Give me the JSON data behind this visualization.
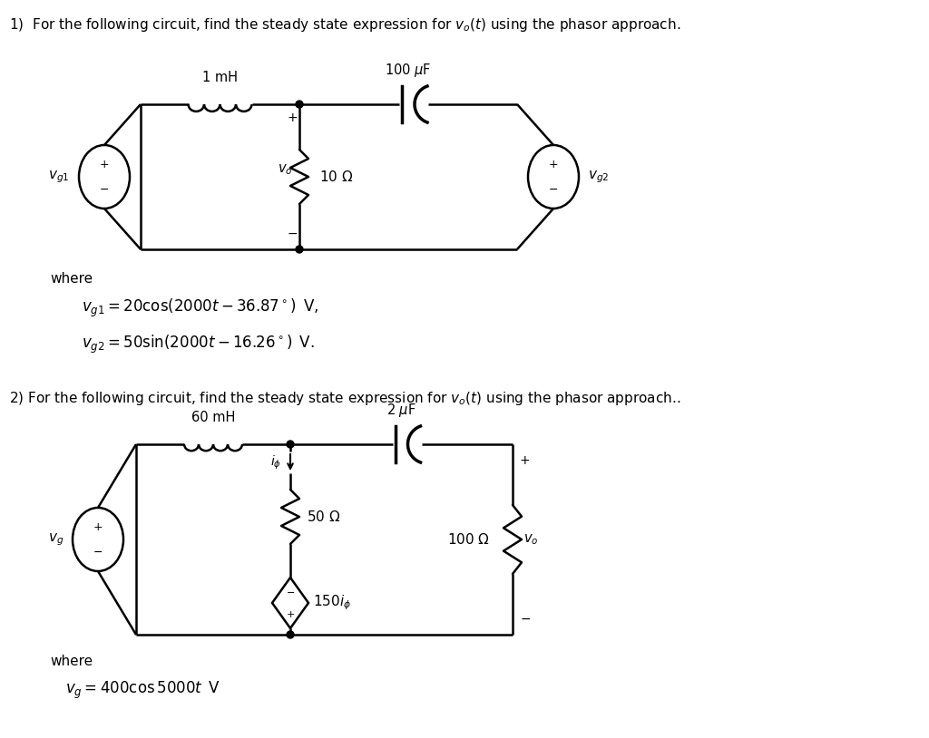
{
  "bg_color": "#ffffff",
  "title1": "1)  For the following circuit, find the steady state expression for $v_o(t)$ using the phasor approach.",
  "title2": "2) For the following circuit, find the steady state expression for $v_o(t)$ using the phasor approach..",
  "eq1a": "$v_{g1} = 20\\cos(2000t - 36.87^\\circ)\\,$ V,",
  "eq1b": "$v_{g2} = 50\\sin(2000t - 16.26^\\circ)\\,$ V.",
  "where1": "where",
  "where2": "where",
  "eq2": "$v_g = 400\\cos5000t\\,$ V"
}
